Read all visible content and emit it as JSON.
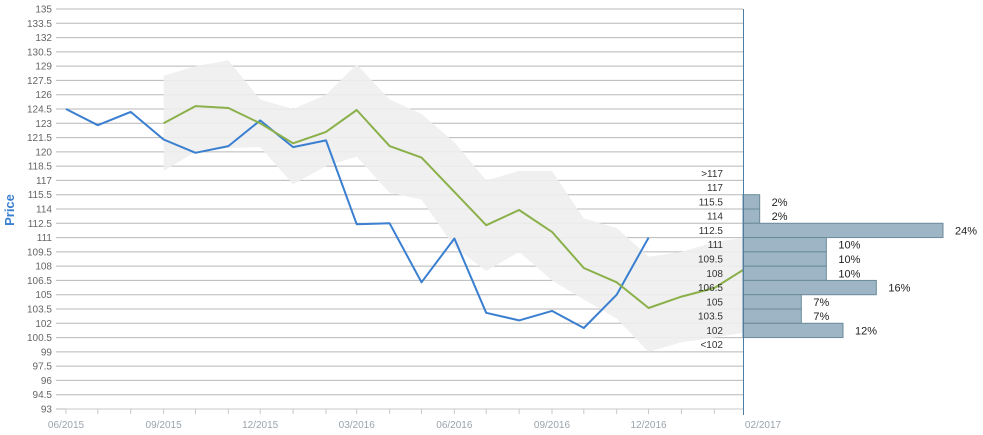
{
  "chart_data": {
    "type": "line",
    "ylabel": "Price",
    "ylim": [
      93,
      135
    ],
    "y_ticks": [
      "93",
      "94.5",
      "96",
      "97.5",
      "99",
      "100.5",
      "102",
      "103.5",
      "105",
      "106.5",
      "108",
      "109.5",
      "111",
      "112.5",
      "114",
      "115.5",
      "117",
      "118.5",
      "120",
      "121.5",
      "123",
      "124.5",
      "126",
      "127.5",
      "129",
      "130.5",
      "132",
      "133.5",
      "135"
    ],
    "x_ticks": [
      "06/2015",
      "09/2015",
      "12/2015",
      "03/2016",
      "06/2016",
      "09/2016",
      "12/2016",
      "02/2017"
    ],
    "x_range": [
      "2015-06-01",
      "2017-02-28"
    ],
    "series": [
      {
        "role": "price",
        "color": "#3a7fd0",
        "points": [
          {
            "x": "2015-06-01",
            "y": 124.5
          },
          {
            "x": "2015-07-01",
            "y": 122.8
          },
          {
            "x": "2015-08-01",
            "y": 124.2
          },
          {
            "x": "2015-09-01",
            "y": 121.3
          },
          {
            "x": "2015-10-01",
            "y": 119.9
          },
          {
            "x": "2015-11-01",
            "y": 120.6
          },
          {
            "x": "2015-12-01",
            "y": 123.3
          },
          {
            "x": "2016-01-01",
            "y": 120.5
          },
          {
            "x": "2016-02-01",
            "y": 121.2
          },
          {
            "x": "2016-03-01",
            "y": 112.4
          },
          {
            "x": "2016-04-01",
            "y": 112.5
          },
          {
            "x": "2016-05-01",
            "y": 106.3
          },
          {
            "x": "2016-06-01",
            "y": 110.9
          },
          {
            "x": "2016-07-01",
            "y": 103.1
          },
          {
            "x": "2016-08-01",
            "y": 102.3
          },
          {
            "x": "2016-09-01",
            "y": 103.3
          },
          {
            "x": "2016-10-01",
            "y": 101.5
          },
          {
            "x": "2016-11-01",
            "y": 105.0
          },
          {
            "x": "2016-12-01",
            "y": 111.0
          }
        ]
      },
      {
        "role": "average",
        "color": "#8ab04a",
        "points": [
          {
            "x": "2015-09-01",
            "y": 123.0
          },
          {
            "x": "2015-10-01",
            "y": 124.8
          },
          {
            "x": "2015-11-01",
            "y": 124.6
          },
          {
            "x": "2015-12-01",
            "y": 123.0
          },
          {
            "x": "2016-01-01",
            "y": 120.9
          },
          {
            "x": "2016-02-01",
            "y": 122.1
          },
          {
            "x": "2016-03-01",
            "y": 124.4
          },
          {
            "x": "2016-04-01",
            "y": 120.6
          },
          {
            "x": "2016-05-01",
            "y": 119.4
          },
          {
            "x": "2016-06-01",
            "y": 115.8
          },
          {
            "x": "2016-07-01",
            "y": 112.3
          },
          {
            "x": "2016-08-01",
            "y": 113.9
          },
          {
            "x": "2016-09-01",
            "y": 111.6
          },
          {
            "x": "2016-10-01",
            "y": 107.8
          },
          {
            "x": "2016-11-01",
            "y": 106.3
          },
          {
            "x": "2016-12-01",
            "y": 103.6
          },
          {
            "x": "2017-01-01",
            "y": 104.8
          },
          {
            "x": "2017-02-01",
            "y": 105.7
          },
          {
            "x": "2017-02-28",
            "y": 107.6
          }
        ]
      }
    ],
    "band": {
      "color": "#eeeeee",
      "points": [
        {
          "x": "2015-09-01",
          "high": 128.0,
          "low": 118.0
        },
        {
          "x": "2015-10-01",
          "high": 129.0,
          "low": 120.0
        },
        {
          "x": "2015-11-01",
          "high": 129.6,
          "low": 120.4
        },
        {
          "x": "2015-12-01",
          "high": 125.5,
          "low": 120.5
        },
        {
          "x": "2016-01-01",
          "high": 124.5,
          "low": 116.6
        },
        {
          "x": "2016-02-01",
          "high": 126.0,
          "low": 118.5
        },
        {
          "x": "2016-03-01",
          "high": 129.2,
          "low": 119.5
        },
        {
          "x": "2016-04-01",
          "high": 125.5,
          "low": 115.7
        },
        {
          "x": "2016-05-01",
          "high": 124.0,
          "low": 115.0
        },
        {
          "x": "2016-06-01",
          "high": 121.0,
          "low": 110.0
        },
        {
          "x": "2016-07-01",
          "high": 117.0,
          "low": 107.5
        },
        {
          "x": "2016-08-01",
          "high": 118.0,
          "low": 109.5
        },
        {
          "x": "2016-09-01",
          "high": 118.0,
          "low": 106.5
        },
        {
          "x": "2016-10-01",
          "high": 113.0,
          "low": 104.5
        },
        {
          "x": "2016-11-01",
          "high": 112.0,
          "low": 102.5
        },
        {
          "x": "2016-12-01",
          "high": 109.0,
          "low": 99.0
        },
        {
          "x": "2017-01-01",
          "high": 109.5,
          "low": 100.0
        },
        {
          "x": "2017-02-01",
          "high": 110.5,
          "low": 100.5
        },
        {
          "x": "2017-02-28",
          "high": 111.0,
          "low": 101.0
        }
      ]
    },
    "histogram": {
      "color": "#9db5c5",
      "border": "#6b8a9a",
      "bins": [
        {
          "label": ">117",
          "y": 117.75,
          "pct": 0,
          "text": ""
        },
        {
          "label": "117",
          "y": 116.25,
          "pct": 0,
          "text": ""
        },
        {
          "label": "115.5",
          "y": 114.75,
          "pct": 2,
          "text": "2%"
        },
        {
          "label": "114",
          "y": 113.25,
          "pct": 2,
          "text": "2%"
        },
        {
          "label": "112.5",
          "y": 111.75,
          "pct": 24,
          "text": "24%"
        },
        {
          "label": "111",
          "y": 110.25,
          "pct": 10,
          "text": "10%"
        },
        {
          "label": "109.5",
          "y": 108.75,
          "pct": 10,
          "text": "10%"
        },
        {
          "label": "108",
          "y": 107.25,
          "pct": 10,
          "text": "10%"
        },
        {
          "label": "106.5",
          "y": 105.75,
          "pct": 16,
          "text": "16%"
        },
        {
          "label": "105",
          "y": 104.25,
          "pct": 7,
          "text": "7%"
        },
        {
          "label": "103.5",
          "y": 102.75,
          "pct": 7,
          "text": "7%"
        },
        {
          "label": "102",
          "y": 101.25,
          "pct": 12,
          "text": "12%"
        },
        {
          "label": "<102",
          "y": 99.75,
          "pct": 0,
          "text": ""
        }
      ]
    },
    "grid": true
  }
}
